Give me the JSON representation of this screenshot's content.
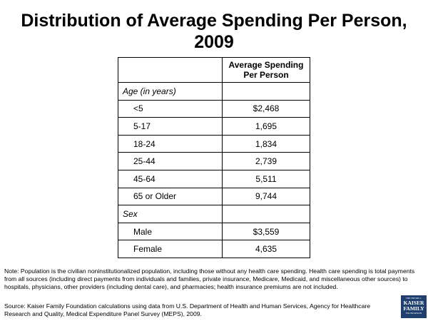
{
  "title": "Distribution of Average Spending Per Person, 2009",
  "table": {
    "header": [
      "",
      "Average Spending Per Person"
    ],
    "sections": [
      {
        "label": "Age (in years)",
        "rows": [
          {
            "group": "<5",
            "value": "$2,468"
          },
          {
            "group": "5-17",
            "value": "1,695"
          },
          {
            "group": "18-24",
            "value": "1,834"
          },
          {
            "group": "25-44",
            "value": "2,739"
          },
          {
            "group": "45-64",
            "value": "5,511"
          },
          {
            "group": "65 or Older",
            "value": "9,744"
          }
        ]
      },
      {
        "label": "Sex",
        "rows": [
          {
            "group": "Male",
            "value": "$3,559"
          },
          {
            "group": "Female",
            "value": "4,635"
          }
        ]
      }
    ]
  },
  "note": "Note: Population is the civilian noninstitutionalized population, including those without any health care spending. Health care spending is total payments from all sources (including direct payments from individuals and families, private insurance, Medicare, Medicaid, and miscellaneous other sources) to hospitals, physicians, other providers (including dental care), and pharmacies; health insurance premiums are not included.",
  "source": "Source: Kaiser Family Foundation calculations using data from U.S. Department of Health and Human Services, Agency for Healthcare Research and Quality, Medical Expenditure Panel Survey (MEPS), 2009.",
  "logo": {
    "line1": "THE HENRY J.",
    "line2a": "KAISER",
    "line2b": "FAMILY",
    "line3": "FOUNDATION",
    "color": "#1f3f6e"
  }
}
